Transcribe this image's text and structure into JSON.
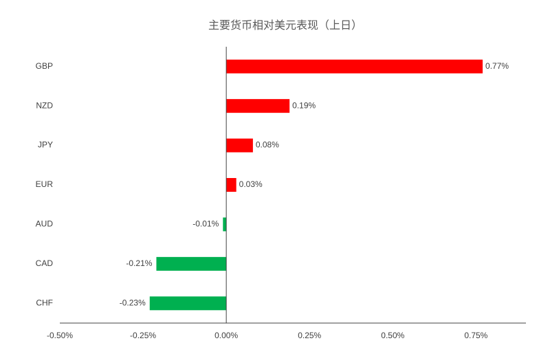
{
  "chart_data": {
    "type": "hbar",
    "title": "主要货币相对美元表现（上日）",
    "categories": [
      "GBP",
      "NZD",
      "JPY",
      "EUR",
      "AUD",
      "CAD",
      "CHF"
    ],
    "values": [
      0.77,
      0.19,
      0.08,
      0.03,
      -0.01,
      -0.21,
      -0.23
    ],
    "value_labels": [
      "0.77%",
      "0.19%",
      "0.08%",
      "0.03%",
      "-0.01%",
      "-0.21%",
      "-0.23%"
    ],
    "positive_color": "#ff0000",
    "negative_color": "#00b050",
    "xlim": [
      -0.5,
      0.9
    ],
    "xticks": [
      {
        "value": -0.5,
        "label": "-0.50%"
      },
      {
        "value": -0.25,
        "label": "-0.25%"
      },
      {
        "value": 0,
        "label": "0.00%"
      },
      {
        "value": 0.25,
        "label": "0.25%"
      },
      {
        "value": 0.5,
        "label": "0.50%"
      },
      {
        "value": 0.75,
        "label": "0.75%"
      }
    ],
    "grid": false
  }
}
